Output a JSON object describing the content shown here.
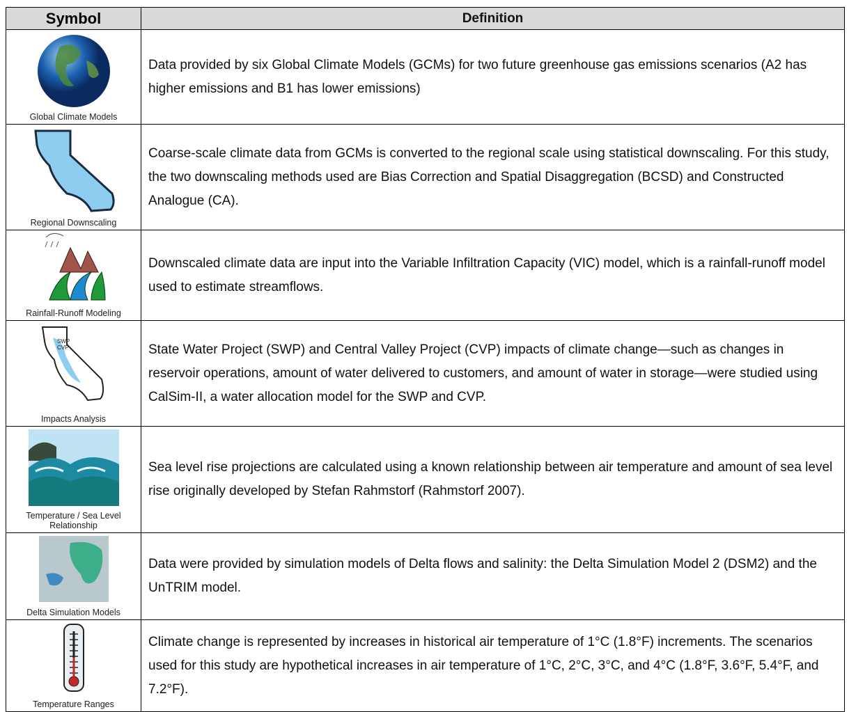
{
  "header": {
    "symbol": "Symbol",
    "definition": "Definition"
  },
  "rows": [
    {
      "symbol_label": "Global Climate Models",
      "definition": "Data provided by six Global Climate Models (GCMs) for two future greenhouse gas emissions scenarios (A2 has higher emissions and B1 has lower emissions)"
    },
    {
      "symbol_label": "Regional Downscaling",
      "definition": "Coarse-scale climate data from GCMs is converted to the regional scale using statistical downscaling. For this study, the two downscaling methods used are Bias Correction and Spatial Disaggregation (BCSD) and Constructed Analogue (CA)."
    },
    {
      "symbol_label": "Rainfall-Runoff Modeling",
      "definition": "Downscaled climate data are input into the Variable Infiltration Capacity (VIC) model, which is a rainfall-runoff model used to estimate streamflows."
    },
    {
      "symbol_label": "Impacts Analysis",
      "icon_text": [
        "SWP",
        "CVP"
      ],
      "definition": "State Water Project (SWP) and Central Valley Project (CVP) impacts of climate change—such as changes in reservoir operations, amount of water delivered to customers, and amount of water in storage—were studied using CalSim-II, a water allocation model for the SWP and CVP."
    },
    {
      "symbol_label": "Temperature / Sea Level Relationship",
      "definition": "Sea level rise projections are calculated using a known relationship between air temperature and amount of sea level rise originally developed by Stefan Rahmstorf (Rahmstorf 2007)."
    },
    {
      "symbol_label": "Delta Simulation Models",
      "definition": "Data were provided by simulation models of Delta flows and salinity: the Delta Simulation Model 2 (DSM2) and the UnTRIM model."
    },
    {
      "symbol_label": "Temperature Ranges",
      "definition": "Climate change is represented by increases in historical air temperature of 1°C (1.8°F) increments. The scenarios used for this study are hypothetical increases in air temperature of 1°C, 2°C, 3°C, and 4°C (1.8°F, 3.6°F, 5.4°F, and 7.2°F)."
    }
  ]
}
